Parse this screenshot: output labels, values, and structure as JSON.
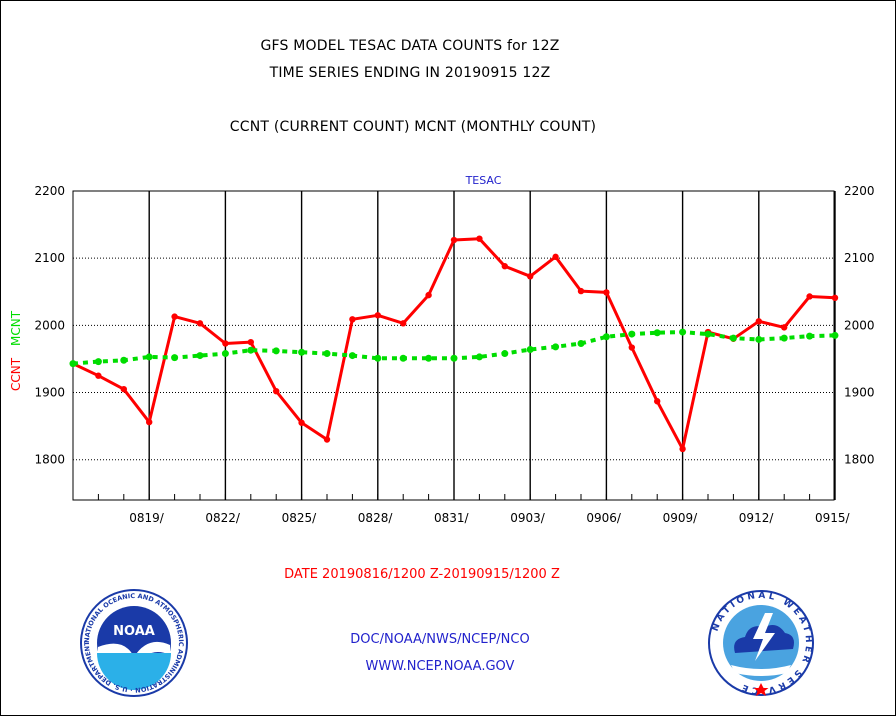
{
  "titles": {
    "line1": "GFS MODEL TESAC DATA COUNTS for 12Z",
    "line2": "TIME SERIES ENDING IN 20190915 12Z",
    "line3": "CCNT (CURRENT COUNT) MCNT (MONTHLY COUNT)"
  },
  "footer": {
    "link1": "DOC/NOAA/NWS/NCEP/NCO",
    "link2": "WWW.NCEP.NOAA.GOV"
  },
  "logos": {
    "noaa_text": "NOAA",
    "noaa_ring": "NATIONAL OCEANIC AND ATMOSPHERIC ADMINISTRATION · U.S. DEPARTMENT OF COMMERCE",
    "nws_ring": "NATIONAL WEATHER SERVICE"
  },
  "chart_data": {
    "type": "line",
    "title": "TESAC",
    "xlabel": "DATE 20190816/1200 Z-20190915/1200 Z",
    "ylabel_left": [
      "CCNT",
      "MCNT"
    ],
    "ylim": [
      1740,
      2200
    ],
    "yticks": [
      1800,
      1900,
      2000,
      2100,
      2200
    ],
    "grid": true,
    "x": [
      "0816",
      "0817",
      "0818",
      "0819",
      "0820",
      "0821",
      "0822",
      "0823",
      "0824",
      "0825",
      "0826",
      "0827",
      "0828",
      "0829",
      "0830",
      "0831",
      "0901",
      "0902",
      "0903",
      "0904",
      "0905",
      "0906",
      "0907",
      "0908",
      "0909",
      "0910",
      "0911",
      "0912",
      "0913",
      "0914",
      "0915"
    ],
    "xticks": [
      "0819/",
      "0822/",
      "0825/",
      "0828/",
      "0831/",
      "0903/",
      "0906/",
      "0909/",
      "0912/",
      "0915/"
    ],
    "series": [
      {
        "name": "CCNT",
        "color": "#ff0000",
        "style": "solid",
        "values": [
          1943,
          1925,
          1905,
          1856,
          2013,
          2003,
          1973,
          1975,
          1902,
          1855,
          1830,
          2009,
          2015,
          2003,
          2045,
          2127,
          2129,
          2088,
          2073,
          2102,
          2051,
          2049,
          1967,
          1887,
          1816,
          1990,
          1980,
          2006,
          1997,
          2043,
          2041
        ]
      },
      {
        "name": "MCNT",
        "color": "#00dd00",
        "style": "dashed",
        "values": [
          1943,
          1946,
          1948,
          1953,
          1952,
          1955,
          1958,
          1963,
          1962,
          1960,
          1958,
          1955,
          1951,
          1951,
          1951,
          1951,
          1953,
          1958,
          1964,
          1968,
          1973,
          1983,
          1987,
          1989,
          1990,
          1987,
          1981,
          1979,
          1981,
          1984,
          1985
        ]
      }
    ]
  }
}
